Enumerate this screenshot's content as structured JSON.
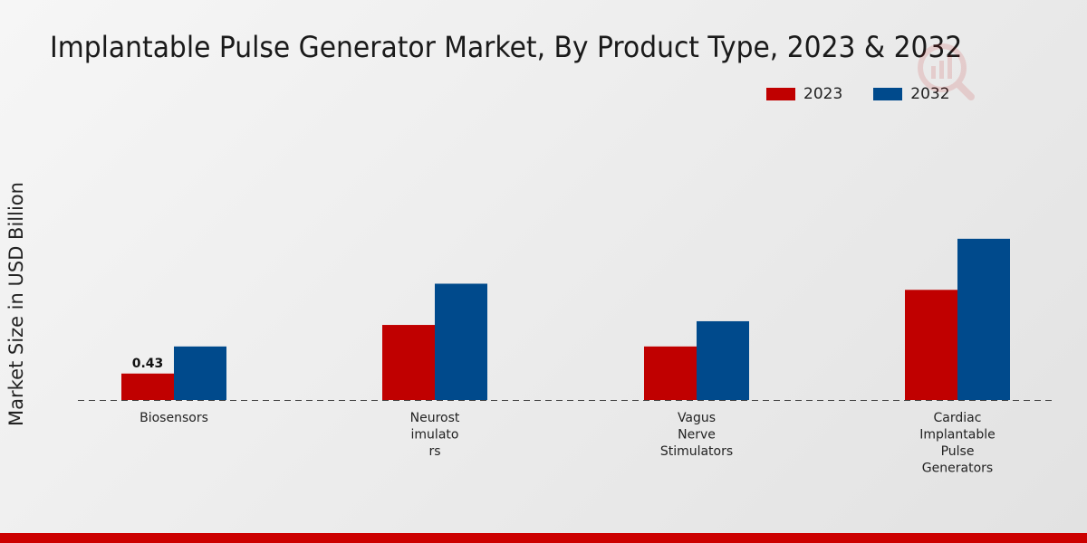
{
  "chart_data": {
    "type": "bar",
    "title": "Implantable Pulse Generator Market, By Product Type, 2023 & 2032",
    "ylabel": "Market Size in USD Billion",
    "xlabel": "",
    "categories": [
      [
        "Biosensors"
      ],
      [
        "Neurost",
        "imulato",
        "rs"
      ],
      [
        "Vagus",
        "Nerve",
        "Stimulators"
      ],
      [
        "Cardiac",
        "Implantable",
        "Pulse",
        "Generators"
      ]
    ],
    "series": [
      {
        "name": "2023",
        "color": "#c00000",
        "values": [
          0.43,
          1.22,
          0.87,
          1.79
        ]
      },
      {
        "name": "2032",
        "color": "#004a8c",
        "values": [
          0.87,
          1.89,
          1.28,
          2.62
        ]
      }
    ],
    "data_labels": [
      {
        "series": 0,
        "index": 0,
        "text": "0.43"
      }
    ],
    "ylim": [
      0,
      6.5
    ],
    "grid": false,
    "legend_position": "top-right"
  }
}
